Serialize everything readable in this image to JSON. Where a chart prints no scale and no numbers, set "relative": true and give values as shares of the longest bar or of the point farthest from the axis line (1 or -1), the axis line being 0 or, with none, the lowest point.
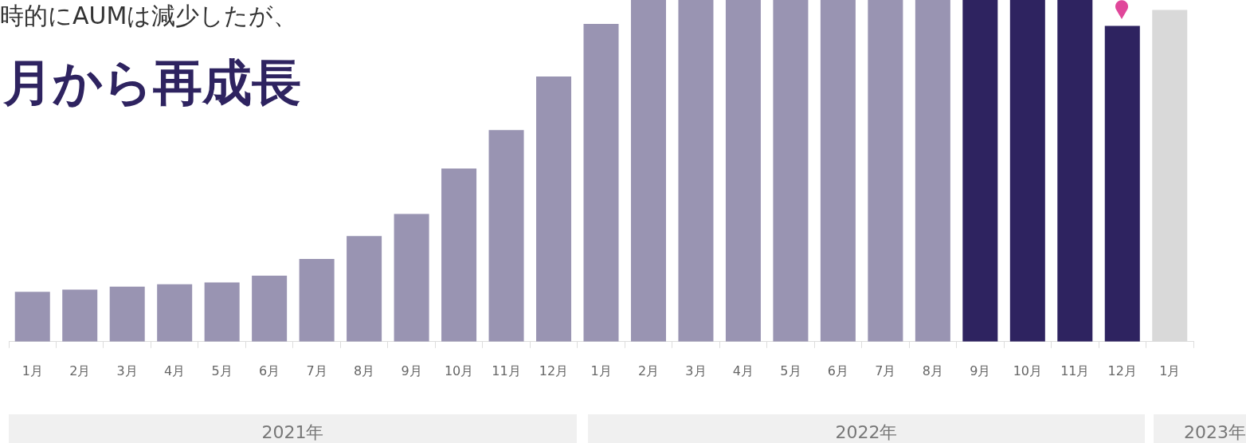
{
  "chart_data": {
    "type": "bar",
    "title": "時的にAUMは減少したが、",
    "subtitle": "月から再成長",
    "relative": true,
    "categories": [
      "1月",
      "2月",
      "3月",
      "4月",
      "5月",
      "6月",
      "7月",
      "8月",
      "9月",
      "10月",
      "11月",
      "12月",
      "1月",
      "2月",
      "3月",
      "4月",
      "5月",
      "6月",
      "7月",
      "8月",
      "9月",
      "10月",
      "11月",
      "12月",
      "1月"
    ],
    "values": [
      0.146,
      0.152,
      0.161,
      0.168,
      0.173,
      0.193,
      0.242,
      0.309,
      0.374,
      0.507,
      0.619,
      0.776,
      0.93,
      1,
      1,
      1,
      1,
      1,
      1,
      1,
      1,
      1,
      1,
      0.924,
      0.971
    ],
    "colors": [
      "#9994b2",
      "#9994b2",
      "#9994b2",
      "#9994b2",
      "#9994b2",
      "#9994b2",
      "#9994b2",
      "#9994b2",
      "#9994b2",
      "#9994b2",
      "#9994b2",
      "#9994b2",
      "#9994b2",
      "#9994b2",
      "#9994b2",
      "#9994b2",
      "#9994b2",
      "#9994b2",
      "#9994b2",
      "#9994b2",
      "#2e2360",
      "#2e2360",
      "#2e2360",
      "#2e2360",
      "#d9d9d9"
    ],
    "annotations": [
      "2021年",
      "2022年",
      "2023年"
    ],
    "grid": false,
    "legend": false
  }
}
